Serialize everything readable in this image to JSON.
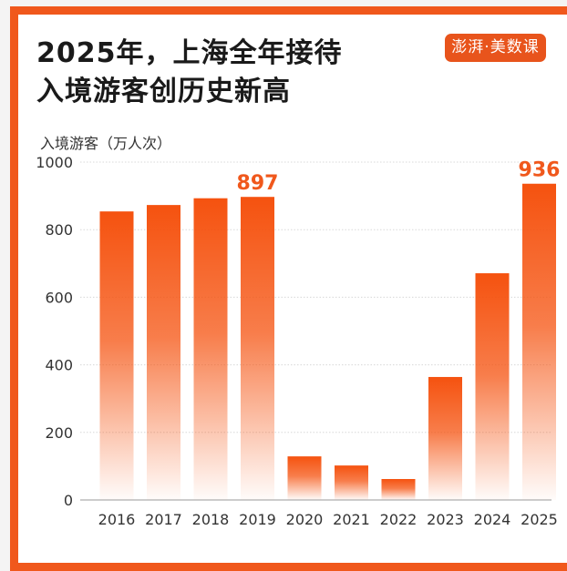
{
  "chart_data": {
    "type": "bar",
    "title": "2025年，上海全年接待\n入境游客创历史新高",
    "title_lines": [
      "2025年，上海全年接待",
      "入境游客创历史新高"
    ],
    "ylabel": "入境游客（万人次）",
    "xlabel": "",
    "categories": [
      "2016",
      "2017",
      "2018",
      "2019",
      "2020",
      "2021",
      "2022",
      "2023",
      "2024",
      "2025"
    ],
    "values": [
      854,
      873,
      893,
      897,
      129,
      102,
      62,
      364,
      671,
      936
    ],
    "data_labels": [
      {
        "category": "2019",
        "text": "897"
      },
      {
        "category": "2025",
        "text": "936"
      }
    ],
    "ylim": [
      0,
      1000
    ],
    "yticks": [
      0,
      200,
      400,
      600,
      800,
      1000
    ],
    "grid": true,
    "bar_color": "#f5520f",
    "label_color": "#f0581c"
  },
  "logo": "澎湃·美数课"
}
